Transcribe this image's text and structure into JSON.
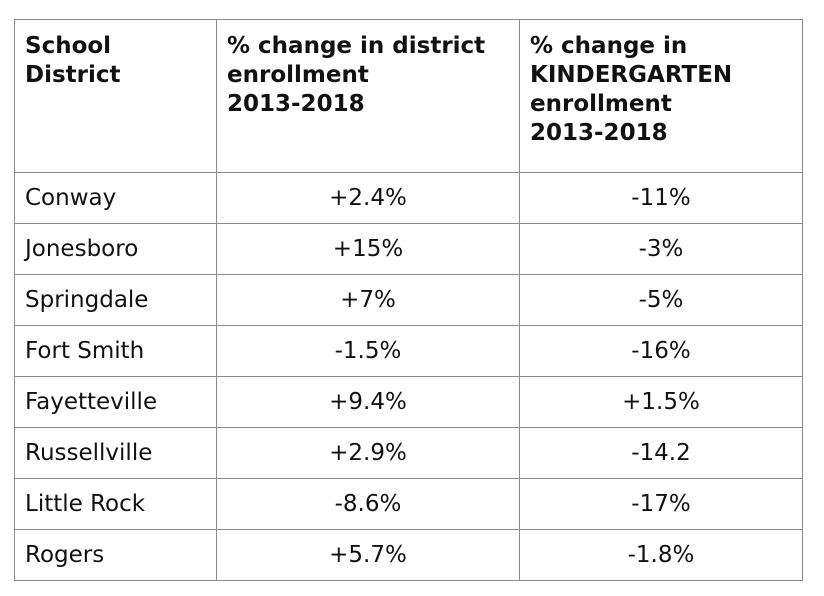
{
  "table": {
    "headers": [
      [
        "School",
        "District"
      ],
      [
        "% change in district",
        "enrollment",
        "2013-2018"
      ],
      [
        "% change in",
        "KINDERGARTEN",
        "enrollment",
        "2013-2018"
      ]
    ],
    "rows": [
      [
        "Conway",
        "+2.4%",
        "-11%"
      ],
      [
        "Jonesboro",
        "+15%",
        "-3%"
      ],
      [
        "Springdale",
        "+7%",
        "-5%"
      ],
      [
        "Fort Smith",
        "-1.5%",
        "-16%"
      ],
      [
        "Fayetteville",
        "+9.4%",
        "+1.5%"
      ],
      [
        "Russellville",
        "+2.9%",
        "-14.2"
      ],
      [
        "Little Rock",
        "-8.6%",
        "-17%"
      ],
      [
        "Rogers",
        "+5.7%",
        "-1.8%"
      ]
    ]
  }
}
